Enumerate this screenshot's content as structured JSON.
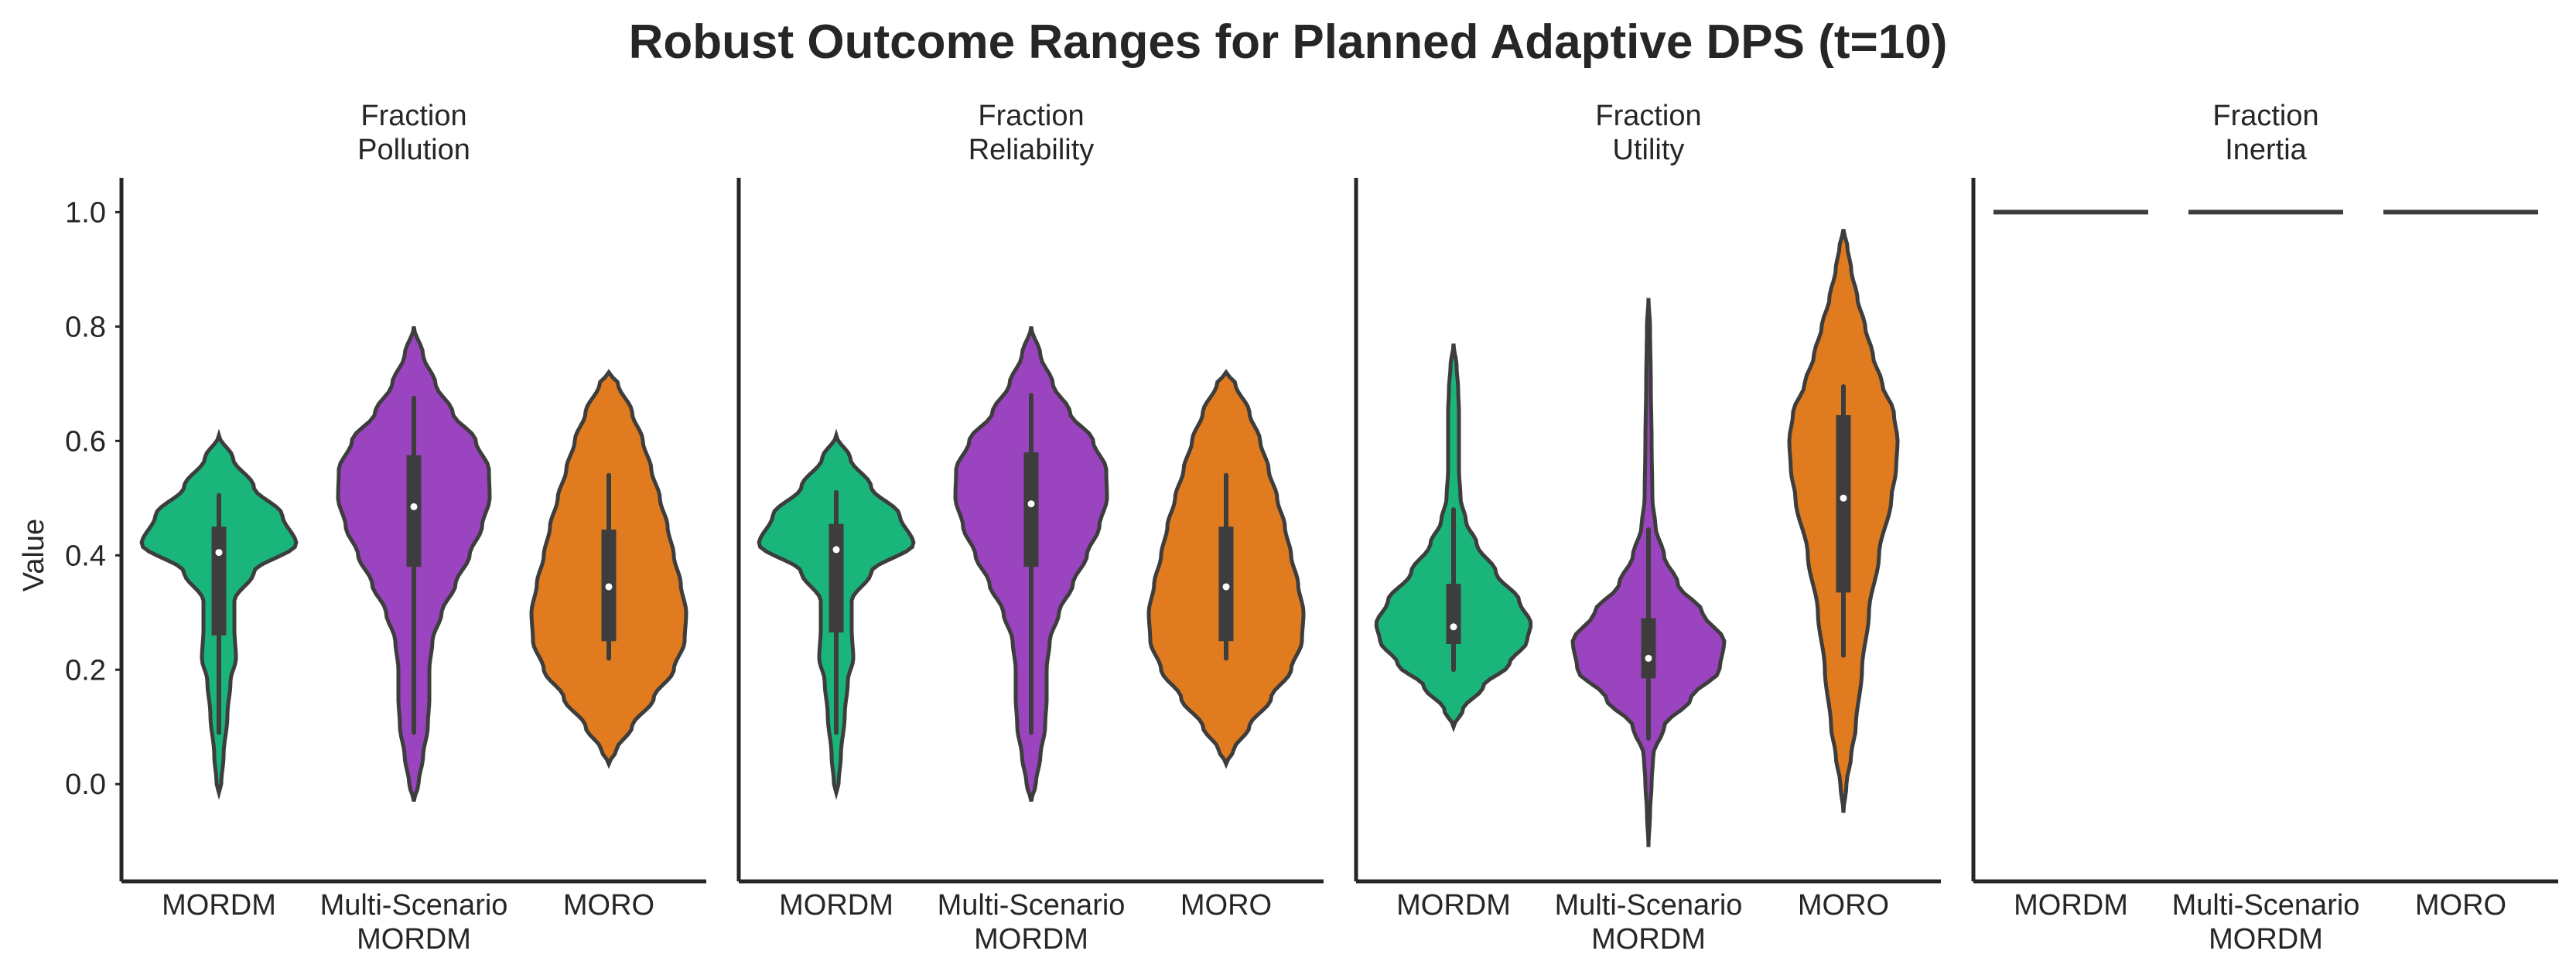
{
  "title": "Robust Outcome Ranges for Planned Adaptive DPS (t=10)",
  "chart_data": {
    "type": "violin",
    "title": "Robust Outcome Ranges for Planned Adaptive DPS (t=10)",
    "ylabel": "Value",
    "ylim": [
      -0.17,
      1.06
    ],
    "yticks": [
      0.0,
      0.2,
      0.4,
      0.6,
      0.8,
      1.0
    ],
    "grid": false,
    "legend": "none",
    "categories": [
      {
        "key": "MORDM",
        "label": [
          "MORDM"
        ]
      },
      {
        "key": "Multi-Scenario MORDM",
        "label": [
          "Multi-Scenario",
          "MORDM"
        ]
      },
      {
        "key": "MORO",
        "label": [
          "MORO"
        ]
      }
    ],
    "colors": {
      "MORDM": "#1ab57a",
      "Multi-Scenario MORDM": "#9b44c0",
      "MORO": "#e07b1f"
    },
    "panels": [
      {
        "title": [
          "Fraction",
          "Pollution"
        ],
        "violins": [
          {
            "category": "MORDM",
            "min": 0.09,
            "q1": 0.26,
            "median": 0.405,
            "q3": 0.45,
            "max": 0.505,
            "profile": [
              [
                -0.015,
                0.0
              ],
              [
                0.0,
                0.03
              ],
              [
                0.05,
                0.06
              ],
              [
                0.12,
                0.11
              ],
              [
                0.18,
                0.15
              ],
              [
                0.22,
                0.22
              ],
              [
                0.27,
                0.2
              ],
              [
                0.32,
                0.2
              ],
              [
                0.37,
                0.45
              ],
              [
                0.42,
                1.0
              ],
              [
                0.47,
                0.82
              ],
              [
                0.52,
                0.45
              ],
              [
                0.57,
                0.18
              ],
              [
                0.61,
                0.0
              ]
            ]
          },
          {
            "category": "Multi-Scenario MORDM",
            "min": 0.09,
            "q1": 0.38,
            "median": 0.485,
            "q3": 0.575,
            "max": 0.675,
            "profile": [
              [
                -0.03,
                0.0
              ],
              [
                0.0,
                0.06
              ],
              [
                0.05,
                0.12
              ],
              [
                0.1,
                0.18
              ],
              [
                0.15,
                0.2
              ],
              [
                0.2,
                0.2
              ],
              [
                0.25,
                0.24
              ],
              [
                0.3,
                0.36
              ],
              [
                0.35,
                0.54
              ],
              [
                0.4,
                0.72
              ],
              [
                0.45,
                0.88
              ],
              [
                0.5,
                0.98
              ],
              [
                0.55,
                0.97
              ],
              [
                0.6,
                0.8
              ],
              [
                0.65,
                0.5
              ],
              [
                0.7,
                0.28
              ],
              [
                0.75,
                0.12
              ],
              [
                0.8,
                0.0
              ]
            ]
          },
          {
            "category": "MORO",
            "min": 0.22,
            "q1": 0.25,
            "median": 0.345,
            "q3": 0.445,
            "max": 0.54,
            "profile": [
              [
                0.035,
                0.0
              ],
              [
                0.06,
                0.1
              ],
              [
                0.1,
                0.3
              ],
              [
                0.15,
                0.58
              ],
              [
                0.2,
                0.84
              ],
              [
                0.25,
                0.98
              ],
              [
                0.3,
                1.0
              ],
              [
                0.35,
                0.93
              ],
              [
                0.4,
                0.84
              ],
              [
                0.45,
                0.76
              ],
              [
                0.5,
                0.66
              ],
              [
                0.55,
                0.55
              ],
              [
                0.6,
                0.44
              ],
              [
                0.65,
                0.3
              ],
              [
                0.7,
                0.12
              ],
              [
                0.72,
                0.0
              ]
            ]
          }
        ]
      },
      {
        "title": [
          "Fraction",
          "Reliability"
        ],
        "violins": [
          {
            "category": "MORDM",
            "min": 0.09,
            "q1": 0.265,
            "median": 0.41,
            "q3": 0.455,
            "max": 0.51,
            "profile": [
              [
                -0.015,
                0.0
              ],
              [
                0.0,
                0.03
              ],
              [
                0.05,
                0.06
              ],
              [
                0.12,
                0.11
              ],
              [
                0.18,
                0.15
              ],
              [
                0.22,
                0.22
              ],
              [
                0.27,
                0.2
              ],
              [
                0.32,
                0.2
              ],
              [
                0.37,
                0.45
              ],
              [
                0.42,
                1.0
              ],
              [
                0.47,
                0.82
              ],
              [
                0.52,
                0.45
              ],
              [
                0.57,
                0.18
              ],
              [
                0.61,
                0.0
              ]
            ]
          },
          {
            "category": "Multi-Scenario MORDM",
            "min": 0.09,
            "q1": 0.38,
            "median": 0.49,
            "q3": 0.58,
            "max": 0.68,
            "profile": [
              [
                -0.03,
                0.0
              ],
              [
                0.0,
                0.06
              ],
              [
                0.05,
                0.12
              ],
              [
                0.1,
                0.18
              ],
              [
                0.15,
                0.2
              ],
              [
                0.2,
                0.2
              ],
              [
                0.25,
                0.24
              ],
              [
                0.3,
                0.36
              ],
              [
                0.35,
                0.54
              ],
              [
                0.4,
                0.72
              ],
              [
                0.45,
                0.88
              ],
              [
                0.5,
                0.98
              ],
              [
                0.55,
                0.97
              ],
              [
                0.6,
                0.8
              ],
              [
                0.65,
                0.5
              ],
              [
                0.7,
                0.28
              ],
              [
                0.75,
                0.12
              ],
              [
                0.8,
                0.0
              ]
            ]
          },
          {
            "category": "MORO",
            "min": 0.22,
            "q1": 0.25,
            "median": 0.345,
            "q3": 0.45,
            "max": 0.54,
            "profile": [
              [
                0.035,
                0.0
              ],
              [
                0.06,
                0.1
              ],
              [
                0.1,
                0.3
              ],
              [
                0.15,
                0.58
              ],
              [
                0.2,
                0.84
              ],
              [
                0.25,
                0.98
              ],
              [
                0.3,
                1.0
              ],
              [
                0.35,
                0.93
              ],
              [
                0.4,
                0.84
              ],
              [
                0.45,
                0.76
              ],
              [
                0.5,
                0.66
              ],
              [
                0.55,
                0.55
              ],
              [
                0.6,
                0.44
              ],
              [
                0.65,
                0.3
              ],
              [
                0.7,
                0.12
              ],
              [
                0.72,
                0.0
              ]
            ]
          }
        ]
      },
      {
        "title": [
          "Fraction",
          "Utility"
        ],
        "violins": [
          {
            "category": "MORDM",
            "min": 0.2,
            "q1": 0.245,
            "median": 0.275,
            "q3": 0.35,
            "max": 0.48,
            "profile": [
              [
                0.1,
                0.0
              ],
              [
                0.13,
                0.12
              ],
              [
                0.17,
                0.38
              ],
              [
                0.21,
                0.72
              ],
              [
                0.25,
                0.95
              ],
              [
                0.28,
                1.0
              ],
              [
                0.32,
                0.85
              ],
              [
                0.37,
                0.55
              ],
              [
                0.42,
                0.3
              ],
              [
                0.46,
                0.16
              ],
              [
                0.5,
                0.09
              ],
              [
                0.55,
                0.07
              ],
              [
                0.6,
                0.07
              ],
              [
                0.65,
                0.07
              ],
              [
                0.69,
                0.06
              ],
              [
                0.73,
                0.04
              ],
              [
                0.77,
                0.0
              ]
            ]
          },
          {
            "category": "Multi-Scenario MORDM",
            "min": 0.08,
            "q1": 0.185,
            "median": 0.22,
            "q3": 0.29,
            "max": 0.445,
            "profile": [
              [
                -0.11,
                0.0
              ],
              [
                -0.05,
                0.02
              ],
              [
                0.0,
                0.04
              ],
              [
                0.05,
                0.06
              ],
              [
                0.1,
                0.2
              ],
              [
                0.15,
                0.55
              ],
              [
                0.2,
                0.92
              ],
              [
                0.25,
                0.98
              ],
              [
                0.3,
                0.7
              ],
              [
                0.35,
                0.38
              ],
              [
                0.4,
                0.2
              ],
              [
                0.45,
                0.09
              ],
              [
                0.5,
                0.05
              ],
              [
                0.6,
                0.04
              ],
              [
                0.7,
                0.03
              ],
              [
                0.8,
                0.02
              ],
              [
                0.85,
                0.0
              ]
            ]
          },
          {
            "category": "MORO",
            "min": 0.225,
            "q1": 0.335,
            "median": 0.5,
            "q3": 0.645,
            "max": 0.695,
            "profile": [
              [
                -0.05,
                0.0
              ],
              [
                0.0,
                0.04
              ],
              [
                0.05,
                0.1
              ],
              [
                0.1,
                0.16
              ],
              [
                0.2,
                0.24
              ],
              [
                0.3,
                0.33
              ],
              [
                0.4,
                0.46
              ],
              [
                0.5,
                0.62
              ],
              [
                0.55,
                0.68
              ],
              [
                0.6,
                0.7
              ],
              [
                0.65,
                0.65
              ],
              [
                0.7,
                0.5
              ],
              [
                0.75,
                0.38
              ],
              [
                0.8,
                0.28
              ],
              [
                0.85,
                0.18
              ],
              [
                0.9,
                0.1
              ],
              [
                0.94,
                0.05
              ],
              [
                0.97,
                0.0
              ]
            ]
          }
        ]
      },
      {
        "title": [
          "Fraction",
          "Inertia"
        ],
        "violins": [
          {
            "category": "MORDM",
            "value": 1.0
          },
          {
            "category": "Multi-Scenario MORDM",
            "value": 1.0
          },
          {
            "category": "MORO",
            "value": 1.0
          }
        ]
      }
    ]
  }
}
